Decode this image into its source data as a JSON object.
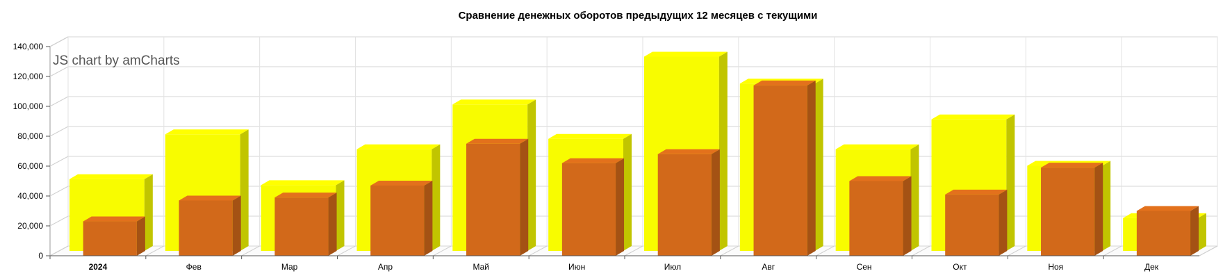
{
  "chart_data": {
    "type": "bar",
    "title": "Сравнение денежных оборотов предыдущих 12 месяцев с текущими",
    "credit": "JS chart by amCharts",
    "categories": [
      "2024",
      "Фев",
      "Мар",
      "Апр",
      "Май",
      "Июн",
      "Июл",
      "Авг",
      "Сен",
      "Окт",
      "Ноя",
      "Дек"
    ],
    "bold_categories": [
      "2024"
    ],
    "y_ticks": [
      "0",
      "20,000",
      "40,000",
      "60,000",
      "80,000",
      "100,000",
      "120,000",
      "140,000"
    ],
    "ylim": [
      0,
      140000
    ],
    "grid": true,
    "series": [
      {
        "values": [
          48000,
          78000,
          44000,
          68000,
          98000,
          75000,
          130000,
          112000,
          68000,
          88000,
          57000,
          22000
        ],
        "color": "#f8fc00"
      },
      {
        "values": [
          23000,
          37000,
          39000,
          47000,
          75000,
          62000,
          68000,
          114000,
          50000,
          41000,
          59000,
          30000
        ],
        "color": "#d2691a"
      }
    ]
  }
}
